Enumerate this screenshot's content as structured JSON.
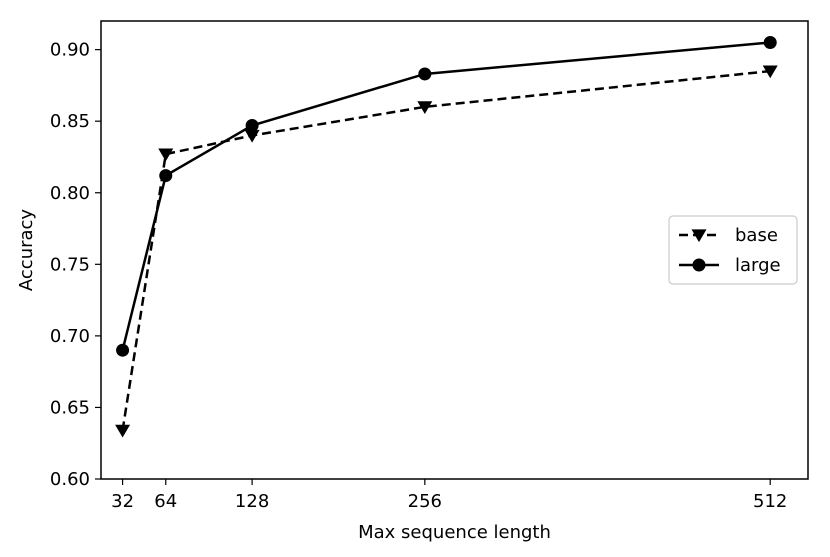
{
  "chart_data": {
    "type": "line",
    "title": "",
    "xlabel": "Max sequence length",
    "ylabel": "Accuracy",
    "x": [
      32,
      64,
      128,
      256,
      512
    ],
    "x_tick_labels": [
      "32",
      "64",
      "128",
      "256",
      "512"
    ],
    "xlim": [
      16,
      540
    ],
    "ylim": [
      0.6,
      0.92
    ],
    "y_ticks": [
      0.6,
      0.65,
      0.7,
      0.75,
      0.8,
      0.85,
      0.9
    ],
    "y_tick_labels": [
      "0.60",
      "0.65",
      "0.70",
      "0.75",
      "0.80",
      "0.85",
      "0.90"
    ],
    "grid": false,
    "legend_position": "center-right",
    "series": [
      {
        "name": "base",
        "values": [
          0.634,
          0.827,
          0.84,
          0.86,
          0.885
        ],
        "line_style": "dashed",
        "marker": "triangle-down",
        "color": "#000000"
      },
      {
        "name": "large",
        "values": [
          0.69,
          0.812,
          0.847,
          0.883,
          0.905
        ],
        "line_style": "solid",
        "marker": "circle",
        "color": "#000000"
      }
    ]
  }
}
